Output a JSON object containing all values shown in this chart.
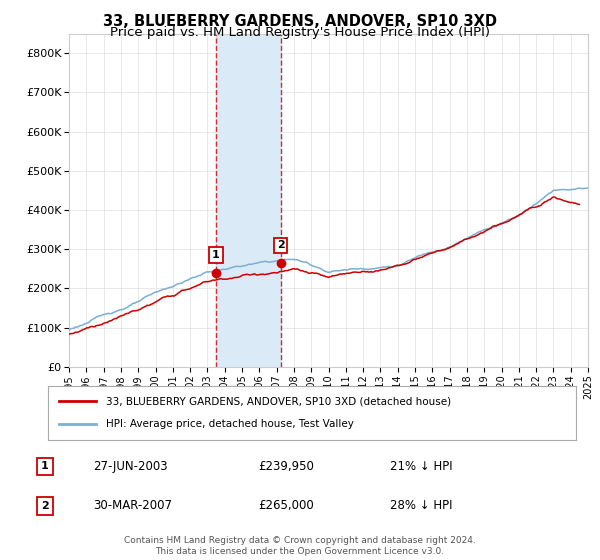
{
  "title": "33, BLUEBERRY GARDENS, ANDOVER, SP10 3XD",
  "subtitle": "Price paid vs. HM Land Registry's House Price Index (HPI)",
  "ylim": [
    0,
    850000
  ],
  "yticks": [
    0,
    100000,
    200000,
    300000,
    400000,
    500000,
    600000,
    700000,
    800000
  ],
  "ytick_labels": [
    "£0",
    "£100K",
    "£200K",
    "£300K",
    "£400K",
    "£500K",
    "£600K",
    "£700K",
    "£800K"
  ],
  "hpi_color": "#7bafd4",
  "price_color": "#cc0000",
  "highlight_fill": "#daeaf7",
  "highlight_edge": "#cc0000",
  "legend_label_price": "33, BLUEBERRY GARDENS, ANDOVER, SP10 3XD (detached house)",
  "legend_label_hpi": "HPI: Average price, detached house, Test Valley",
  "transaction1": {
    "num": "1",
    "date": "27-JUN-2003",
    "price": "£239,950",
    "hpi": "21% ↓ HPI",
    "year": 2003.49
  },
  "transaction2": {
    "num": "2",
    "date": "30-MAR-2007",
    "price": "£265,000",
    "hpi": "28% ↓ HPI",
    "year": 2007.24
  },
  "footer": "Contains HM Land Registry data © Crown copyright and database right 2024.\nThis data is licensed under the Open Government Licence v3.0.",
  "title_fontsize": 10.5,
  "subtitle_fontsize": 9.5,
  "grid_color": "#e0e0e0"
}
